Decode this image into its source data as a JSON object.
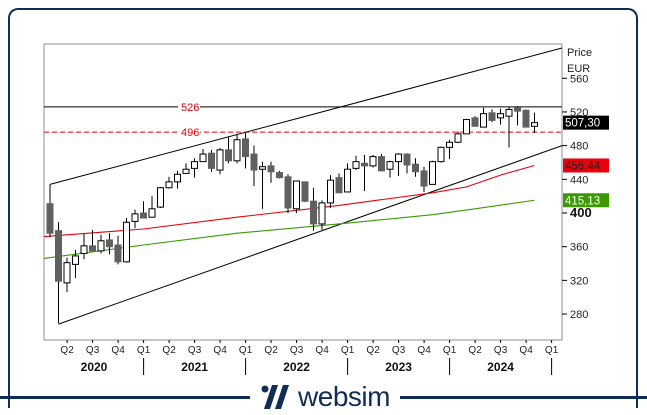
{
  "brand": {
    "name": "websim",
    "color": "#0f2d57"
  },
  "chart_data": {
    "type": "candlestick",
    "axis_title": "Price",
    "axis_unit": "EUR",
    "ylim": [
      250,
      610
    ],
    "yticks": [
      280,
      320,
      360,
      400,
      440,
      480,
      520,
      560
    ],
    "xlabels": {
      "quarters": [
        "Q2",
        "Q3",
        "Q4",
        "Q1",
        "Q2",
        "Q3",
        "Q4",
        "Q1",
        "Q2",
        "Q3",
        "Q4",
        "Q1",
        "Q2",
        "Q3",
        "Q4",
        "Q1",
        "Q2",
        "Q3",
        "Q4",
        "Q1"
      ],
      "years": [
        "2020",
        "2021",
        "2022",
        "2023",
        "2024"
      ]
    },
    "candles": [
      {
        "d": "2020-02",
        "o": 411,
        "h": 413,
        "l": 371,
        "c": 376
      },
      {
        "d": "2020-03",
        "o": 379,
        "h": 389,
        "l": 269,
        "c": 319
      },
      {
        "d": "2020-04",
        "o": 317,
        "h": 347,
        "l": 306,
        "c": 341
      },
      {
        "d": "2020-05",
        "o": 339,
        "h": 356,
        "l": 323,
        "c": 349
      },
      {
        "d": "2020-06",
        "o": 352,
        "h": 375,
        "l": 345,
        "c": 361
      },
      {
        "d": "2020-07",
        "o": 361,
        "h": 380,
        "l": 355,
        "c": 355
      },
      {
        "d": "2020-08",
        "o": 355,
        "h": 374,
        "l": 352,
        "c": 367
      },
      {
        "d": "2020-09",
        "o": 368,
        "h": 376,
        "l": 351,
        "c": 360
      },
      {
        "d": "2020-10",
        "o": 362,
        "h": 373,
        "l": 339,
        "c": 342
      },
      {
        "d": "2020-11",
        "o": 342,
        "h": 394,
        "l": 341,
        "c": 389
      },
      {
        "d": "2020-12",
        "o": 390,
        "h": 404,
        "l": 382,
        "c": 399
      },
      {
        "d": "2021-01",
        "o": 400,
        "h": 414,
        "l": 394,
        "c": 394
      },
      {
        "d": "2021-02",
        "o": 395,
        "h": 420,
        "l": 395,
        "c": 405
      },
      {
        "d": "2021-03",
        "o": 407,
        "h": 431,
        "l": 406,
        "c": 430
      },
      {
        "d": "2021-04",
        "o": 430,
        "h": 443,
        "l": 429,
        "c": 437
      },
      {
        "d": "2021-05",
        "o": 437,
        "h": 450,
        "l": 429,
        "c": 446
      },
      {
        "d": "2021-06",
        "o": 447,
        "h": 459,
        "l": 447,
        "c": 452
      },
      {
        "d": "2021-07",
        "o": 453,
        "h": 465,
        "l": 442,
        "c": 461
      },
      {
        "d": "2021-08",
        "o": 461,
        "h": 476,
        "l": 461,
        "c": 470
      },
      {
        "d": "2021-09",
        "o": 471,
        "h": 475,
        "l": 449,
        "c": 453
      },
      {
        "d": "2021-10",
        "o": 451,
        "h": 477,
        "l": 446,
        "c": 475
      },
      {
        "d": "2021-11",
        "o": 475,
        "h": 490,
        "l": 459,
        "c": 462
      },
      {
        "d": "2021-12",
        "o": 462,
        "h": 493,
        "l": 459,
        "c": 487
      },
      {
        "d": "2022-01",
        "o": 488,
        "h": 495,
        "l": 453,
        "c": 467
      },
      {
        "d": "2022-02",
        "o": 470,
        "h": 480,
        "l": 432,
        "c": 451
      },
      {
        "d": "2022-03",
        "o": 452,
        "h": 461,
        "l": 405,
        "c": 455
      },
      {
        "d": "2022-04",
        "o": 456,
        "h": 461,
        "l": 436,
        "c": 449
      },
      {
        "d": "2022-05",
        "o": 448,
        "h": 450,
        "l": 441,
        "c": 442
      },
      {
        "d": "2022-06",
        "o": 443,
        "h": 446,
        "l": 400,
        "c": 406
      },
      {
        "d": "2022-07",
        "o": 405,
        "h": 438,
        "l": 400,
        "c": 438
      },
      {
        "d": "2022-08",
        "o": 437,
        "h": 437,
        "l": 413,
        "c": 414
      },
      {
        "d": "2022-09",
        "o": 414,
        "h": 430,
        "l": 379,
        "c": 387
      },
      {
        "d": "2022-10",
        "o": 387,
        "h": 415,
        "l": 380,
        "c": 412
      },
      {
        "d": "2022-11",
        "o": 412,
        "h": 445,
        "l": 406,
        "c": 439
      },
      {
        "d": "2022-12",
        "o": 442,
        "h": 447,
        "l": 424,
        "c": 424
      },
      {
        "d": "2023-01",
        "o": 425,
        "h": 459,
        "l": 425,
        "c": 452
      },
      {
        "d": "2023-02",
        "o": 453,
        "h": 468,
        "l": 451,
        "c": 461
      },
      {
        "d": "2023-03",
        "o": 459,
        "h": 469,
        "l": 426,
        "c": 456
      },
      {
        "d": "2023-04",
        "o": 456,
        "h": 469,
        "l": 454,
        "c": 467
      },
      {
        "d": "2023-05",
        "o": 467,
        "h": 470,
        "l": 450,
        "c": 450
      },
      {
        "d": "2023-06",
        "o": 452,
        "h": 462,
        "l": 442,
        "c": 461
      },
      {
        "d": "2023-07",
        "o": 461,
        "h": 471,
        "l": 444,
        "c": 470
      },
      {
        "d": "2023-08",
        "o": 470,
        "h": 471,
        "l": 447,
        "c": 457
      },
      {
        "d": "2023-09",
        "o": 458,
        "h": 465,
        "l": 443,
        "c": 449
      },
      {
        "d": "2023-10",
        "o": 450,
        "h": 455,
        "l": 425,
        "c": 432
      },
      {
        "d": "2023-11",
        "o": 434,
        "h": 462,
        "l": 434,
        "c": 461
      },
      {
        "d": "2023-12",
        "o": 461,
        "h": 479,
        "l": 460,
        "c": 478
      },
      {
        "d": "2024-01",
        "o": 478,
        "h": 487,
        "l": 464,
        "c": 484
      },
      {
        "d": "2024-02",
        "o": 484,
        "h": 497,
        "l": 483,
        "c": 494
      },
      {
        "d": "2024-03",
        "o": 494,
        "h": 512,
        "l": 494,
        "c": 511
      },
      {
        "d": "2024-04",
        "o": 513,
        "h": 515,
        "l": 503,
        "c": 503
      },
      {
        "d": "2024-05",
        "o": 502,
        "h": 525,
        "l": 502,
        "c": 518
      },
      {
        "d": "2024-06",
        "o": 519,
        "h": 523,
        "l": 508,
        "c": 510
      },
      {
        "d": "2024-07",
        "o": 513,
        "h": 524,
        "l": 505,
        "c": 518
      },
      {
        "d": "2024-08",
        "o": 515,
        "h": 526,
        "l": 478,
        "c": 523
      },
      {
        "d": "2024-09",
        "o": 525,
        "h": 527,
        "l": 504,
        "c": 521
      },
      {
        "d": "2024-10",
        "o": 522,
        "h": 523,
        "l": 502,
        "c": 502
      },
      {
        "d": "2024-11",
        "o": 503,
        "h": 519,
        "l": 495,
        "c": 507.3
      }
    ],
    "moving_averages": [
      {
        "color": "#e8000b",
        "last_label": "456,44",
        "points": [
          [
            "2020-01",
            372
          ],
          [
            "2021-01",
            381
          ],
          [
            "2021-12",
            395
          ],
          [
            "2022-12",
            409
          ],
          [
            "2023-11",
            424
          ],
          [
            "2024-03",
            431
          ],
          [
            "2024-07",
            445
          ],
          [
            "2024-11",
            456.44
          ]
        ]
      },
      {
        "color": "#3a9a00",
        "last_label": "415,13",
        "points": [
          [
            "2020-01",
            346
          ],
          [
            "2021-01",
            362
          ],
          [
            "2021-12",
            376
          ],
          [
            "2022-12",
            387
          ],
          [
            "2023-11",
            398
          ],
          [
            "2024-04",
            405
          ],
          [
            "2024-11",
            415.13
          ]
        ]
      }
    ],
    "trend_channel": {
      "upper": [
        [
          "2020-02",
          434
        ],
        [
          "2025-03",
          596
        ]
      ],
      "lower": [
        [
          "2020-03",
          268
        ],
        [
          "2025-03",
          480
        ]
      ]
    },
    "horizontal_lines": [
      {
        "value": 526,
        "label": "526",
        "style": "solid",
        "color": "#000000",
        "label_color": "#e8000b"
      },
      {
        "value": 496,
        "label": "496",
        "style": "dashed",
        "color": "#e8000b",
        "label_color": "#e8000b"
      }
    ],
    "last_price": {
      "value": 507.3,
      "label": "507,30",
      "color": "#000000"
    },
    "colors": {
      "up": "#ffffff",
      "down": "#606060",
      "outline": "#000000"
    }
  }
}
